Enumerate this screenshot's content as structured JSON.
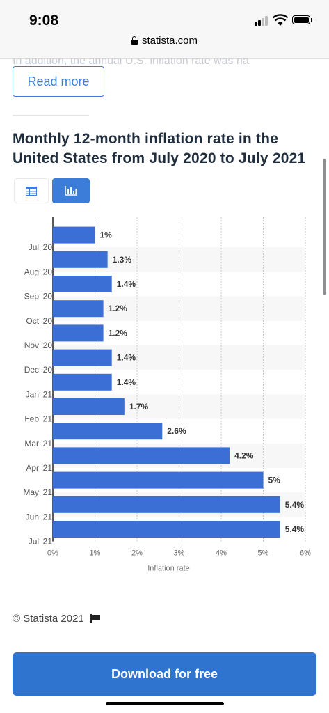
{
  "status_bar": {
    "time": "9:08"
  },
  "browser": {
    "url": "statista.com"
  },
  "page": {
    "ghost_text": "In addition, the annual U.S. inflation rate was ha",
    "read_more_label": "Read more",
    "chart_title": "Monthly 12-month inflation rate in the United States from July 2020 to July 2021",
    "view_toggle": {
      "table_icon": "table-icon",
      "chart_icon": "bar-chart-icon",
      "active": "chart"
    },
    "copyright": "© Statista 2021",
    "download_label": "Download for free"
  },
  "colors": {
    "bar": "#3b6fd6",
    "accent": "#3b7dd8",
    "download_button": "#2f74cf"
  },
  "chart_data": {
    "type": "bar",
    "orientation": "horizontal",
    "categories": [
      "Jul '20",
      "Aug '20",
      "Sep '20",
      "Oct '20",
      "Nov '20",
      "Dec '20",
      "Jan '21",
      "Feb '21",
      "Mar '21",
      "Apr '21",
      "May '21",
      "Jun '21",
      "Jul '21"
    ],
    "values": [
      1,
      1.3,
      1.4,
      1.2,
      1.2,
      1.4,
      1.4,
      1.7,
      2.6,
      4.2,
      5,
      5.4,
      5.4
    ],
    "data_labels": [
      "1%",
      "1.3%",
      "1.4%",
      "1.2%",
      "1.2%",
      "1.4%",
      "1.4%",
      "1.7%",
      "2.6%",
      "4.2%",
      "5%",
      "5.4%",
      "5.4%"
    ],
    "xlabel": "Inflation rate",
    "ylabel": "",
    "xlim": [
      0,
      6
    ],
    "x_ticks": [
      "0%",
      "1%",
      "2%",
      "3%",
      "4%",
      "5%",
      "6%"
    ],
    "grid": "vertical dotted"
  }
}
